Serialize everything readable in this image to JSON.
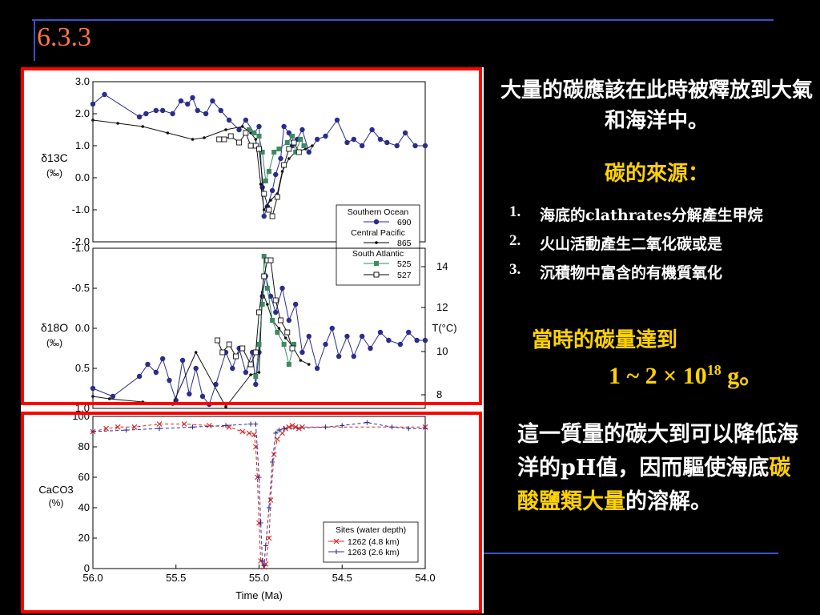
{
  "slide": {
    "title": "6.3.3",
    "intro": "大量的碳應該在此時被釋放到大氣和海洋中。",
    "sources_heading": "碳的來源：",
    "sources": [
      {
        "num": "1.",
        "text": "海底的clathrates分解產生甲烷"
      },
      {
        "num": "2.",
        "text": "火山活動產生二氧化碳或是"
      },
      {
        "num": "3.",
        "text": "沉積物中富含的有機質氧化"
      }
    ],
    "amount_line1": "當時的碳量達到",
    "amount_prefix": "1 ~ 2 × 10",
    "amount_exp": "18",
    "amount_suffix": " g。",
    "ph_white": "這一質量的碳大到可以降低海洋的pH值，因而驅使海底",
    "ph_yellow": "碳酸鹽類大量",
    "ph_end": "的溶解。",
    "colors": {
      "background": "#000000",
      "title": "#ff7744",
      "highlight": "#ffd200",
      "frame": "#ff0000",
      "rule": "#3355cc"
    }
  },
  "chart_data": [
    {
      "type": "line",
      "panel": "carbon isotopes",
      "ylabel": "δ13C (‰)",
      "ylim": [
        -2.0,
        3.0
      ],
      "yticks": [
        "3.0",
        "2.0",
        "1.0",
        "0.0",
        "-1.0",
        "-2.0"
      ],
      "xlim": [
        56.0,
        54.0
      ],
      "legend": {
        "placement": "bottom-right",
        "groups": [
          {
            "heading": "Southern Ocean",
            "site": "690",
            "color": "#2a2d8a",
            "marker": "circle"
          },
          {
            "heading": "Central Pacific",
            "site": "865",
            "color": "#000000",
            "marker": "dot"
          },
          {
            "heading": "South Atlantic",
            "site": "525",
            "color": "#3d8a62",
            "marker": "square"
          },
          {
            "heading": "",
            "site": "527",
            "color": "#000000",
            "marker": "open-square"
          }
        ]
      },
      "series": [
        {
          "name": "690",
          "points": [
            [
              56.0,
              2.3
            ],
            [
              55.93,
              2.6
            ],
            [
              55.72,
              1.9
            ],
            [
              55.68,
              2.0
            ],
            [
              55.62,
              2.1
            ],
            [
              55.58,
              2.1
            ],
            [
              55.52,
              2.0
            ],
            [
              55.47,
              2.4
            ],
            [
              55.43,
              2.3
            ],
            [
              55.4,
              2.5
            ],
            [
              55.37,
              2.1
            ],
            [
              55.32,
              2.0
            ],
            [
              55.28,
              2.4
            ],
            [
              55.23,
              2.1
            ],
            [
              55.18,
              1.8
            ],
            [
              55.12,
              1.5
            ],
            [
              55.08,
              1.8
            ],
            [
              55.03,
              1.4
            ],
            [
              55.0,
              1.6
            ],
            [
              54.98,
              -0.3
            ],
            [
              54.97,
              -1.2
            ],
            [
              54.95,
              -0.9
            ],
            [
              54.92,
              -0.4
            ],
            [
              54.9,
              0.1
            ],
            [
              54.87,
              0.6
            ],
            [
              54.85,
              1.6
            ],
            [
              54.82,
              1.4
            ],
            [
              54.8,
              1.0
            ],
            [
              54.77,
              1.2
            ],
            [
              54.74,
              1.5
            ],
            [
              54.7,
              0.8
            ],
            [
              54.65,
              1.2
            ],
            [
              54.6,
              1.3
            ],
            [
              54.53,
              1.8
            ],
            [
              54.47,
              1.1
            ],
            [
              54.43,
              1.2
            ],
            [
              54.38,
              1.0
            ],
            [
              54.32,
              1.5
            ],
            [
              54.27,
              1.2
            ],
            [
              54.23,
              1.1
            ],
            [
              54.17,
              1.0
            ],
            [
              54.12,
              1.4
            ],
            [
              54.06,
              1.0
            ],
            [
              54.0,
              1.0
            ]
          ]
        },
        {
          "name": "865",
          "points": [
            [
              56.0,
              1.8
            ],
            [
              55.85,
              1.7
            ],
            [
              55.7,
              1.6
            ],
            [
              55.55,
              1.4
            ],
            [
              55.4,
              1.2
            ],
            [
              55.33,
              1.25
            ],
            [
              55.2,
              1.5
            ],
            [
              55.1,
              1.6
            ],
            [
              55.05,
              1.4
            ],
            [
              55.02,
              1.2
            ],
            [
              54.99,
              -0.2
            ],
            [
              54.97,
              -1.0
            ],
            [
              54.93,
              -0.7
            ],
            [
              54.89,
              -0.5
            ],
            [
              54.86,
              0.2
            ],
            [
              54.82,
              0.6
            ],
            [
              54.78,
              0.8
            ],
            [
              54.72,
              0.9
            ],
            [
              54.68,
              1.0
            ]
          ]
        },
        {
          "name": "525",
          "points": [
            [
              55.06,
              1.5
            ],
            [
              55.03,
              1.4
            ],
            [
              55.0,
              1.3
            ],
            [
              54.98,
              0.8
            ],
            [
              54.96,
              -0.1
            ],
            [
              54.94,
              0.2
            ],
            [
              54.91,
              0.8
            ],
            [
              54.88,
              0.9
            ],
            [
              54.83,
              1.1
            ],
            [
              54.8,
              1.3
            ],
            [
              54.78,
              0.8
            ],
            [
              54.75,
              1.2
            ],
            [
              54.73,
              1.0
            ]
          ]
        },
        {
          "name": "527",
          "points": [
            [
              55.24,
              1.2
            ],
            [
              55.21,
              1.2
            ],
            [
              55.17,
              1.3
            ],
            [
              55.12,
              1.1
            ],
            [
              55.08,
              1.4
            ],
            [
              55.05,
              1.0
            ],
            [
              55.02,
              1.0
            ],
            [
              55.0,
              0.9
            ],
            [
              54.97,
              -0.5
            ],
            [
              54.94,
              -1.0
            ],
            [
              54.92,
              -1.2
            ],
            [
              54.89,
              -0.6
            ],
            [
              54.85,
              0.4
            ],
            [
              54.82,
              0.9
            ],
            [
              54.79,
              1.1
            ],
            [
              54.76,
              0.8
            ]
          ]
        }
      ]
    },
    {
      "type": "line",
      "panel": "oxygen isotopes",
      "ylabel": "δ18O (‰)",
      "ylim": [
        1.0,
        -1.0
      ],
      "yticks": [
        "-1.0",
        "-0.5",
        "0.0",
        "0.5",
        "1.0"
      ],
      "right_axis": {
        "label": "T(°C)",
        "ticks": [
          {
            "label": "14",
            "d18O": -0.77
          },
          {
            "label": "12",
            "d18O": -0.26
          },
          {
            "label": "10",
            "d18O": 0.29
          },
          {
            "label": "8",
            "d18O": 0.83
          }
        ]
      },
      "xlim": [
        56.0,
        54.0
      ],
      "series": [
        {
          "name": "690",
          "points": [
            [
              56.0,
              0.75
            ],
            [
              55.88,
              0.85
            ],
            [
              55.72,
              0.6
            ],
            [
              55.67,
              0.45
            ],
            [
              55.62,
              0.55
            ],
            [
              55.58,
              0.38
            ],
            [
              55.54,
              0.65
            ],
            [
              55.5,
              0.9
            ],
            [
              55.46,
              0.4
            ],
            [
              55.42,
              0.82
            ],
            [
              55.38,
              0.5
            ],
            [
              55.34,
              0.85
            ],
            [
              55.3,
              0.95
            ],
            [
              55.26,
              0.7
            ],
            [
              55.2,
              0.3
            ],
            [
              55.16,
              0.5
            ],
            [
              55.12,
              0.25
            ],
            [
              55.08,
              0.55
            ],
            [
              55.04,
              0.3
            ],
            [
              55.02,
              0.7
            ],
            [
              55.0,
              0.3
            ],
            [
              54.98,
              -0.4
            ],
            [
              54.96,
              -0.65
            ],
            [
              54.93,
              -0.4
            ],
            [
              54.9,
              -0.2
            ],
            [
              54.86,
              -0.5
            ],
            [
              54.82,
              -0.1
            ],
            [
              54.78,
              -0.3
            ],
            [
              54.74,
              0.3
            ],
            [
              54.7,
              0.1
            ],
            [
              54.65,
              0.5
            ],
            [
              54.6,
              0.2
            ],
            [
              54.56,
              0.0
            ],
            [
              54.52,
              0.35
            ],
            [
              54.47,
              0.1
            ],
            [
              54.43,
              0.35
            ],
            [
              54.38,
              0.1
            ],
            [
              54.33,
              0.25
            ],
            [
              54.27,
              0.05
            ],
            [
              54.22,
              0.15
            ],
            [
              54.15,
              0.2
            ],
            [
              54.1,
              0.05
            ],
            [
              54.05,
              0.15
            ],
            [
              54.0,
              0.15
            ]
          ]
        },
        {
          "name": "865",
          "points": [
            [
              56.0,
              0.85
            ],
            [
              55.9,
              0.88
            ],
            [
              55.7,
              0.92
            ],
            [
              55.52,
              0.95
            ],
            [
              55.38,
              0.3
            ],
            [
              55.2,
              0.98
            ],
            [
              55.05,
              0.58
            ],
            [
              55.0,
              0.55
            ],
            [
              54.98,
              -0.45
            ],
            [
              54.95,
              -0.3
            ],
            [
              54.92,
              -0.1
            ],
            [
              54.88,
              0.0
            ],
            [
              54.84,
              0.12
            ],
            [
              54.8,
              0.22
            ],
            [
              54.75,
              0.4
            ],
            [
              54.7,
              0.45
            ]
          ]
        },
        {
          "name": "525",
          "points": [
            [
              55.02,
              0.6
            ],
            [
              55.0,
              0.2
            ],
            [
              54.98,
              -0.3
            ],
            [
              54.97,
              -0.9
            ],
            [
              54.95,
              -0.5
            ],
            [
              54.92,
              -0.1
            ],
            [
              54.89,
              0.05
            ],
            [
              54.85,
              0.2
            ],
            [
              54.82,
              0.45
            ],
            [
              54.79,
              0.2
            ]
          ]
        },
        {
          "name": "527",
          "points": [
            [
              55.25,
              0.15
            ],
            [
              55.22,
              0.3
            ],
            [
              55.18,
              0.2
            ],
            [
              55.14,
              0.35
            ],
            [
              55.1,
              0.25
            ],
            [
              55.05,
              0.45
            ],
            [
              55.02,
              0.3
            ],
            [
              55.0,
              -0.2
            ],
            [
              54.97,
              -0.65
            ],
            [
              54.95,
              -0.85
            ],
            [
              54.93,
              -0.85
            ],
            [
              54.9,
              -0.35
            ],
            [
              54.87,
              -0.1
            ],
            [
              54.83,
              0.05
            ],
            [
              54.8,
              0.25
            ]
          ]
        }
      ]
    },
    {
      "type": "line",
      "panel": "carbonate content",
      "ylabel": "CaCO3 (%)",
      "ylim": [
        0,
        100
      ],
      "yticks": [
        "0",
        "20",
        "40",
        "60",
        "80",
        "100"
      ],
      "xlim": [
        56.0,
        54.0
      ],
      "xticks": [
        "56.0",
        "55.5",
        "55.0",
        "54.5",
        "54.0"
      ],
      "xlabel": "Time (Ma)",
      "legend": {
        "placement": "bottom-right",
        "heading": "Sites (water depth)",
        "entries": [
          "1262 (4.8 km)",
          "1263 (2.6 km)"
        ]
      },
      "series": [
        {
          "name": "1262 (4.8 km)",
          "color": "#dd2222",
          "marker": "x",
          "points": [
            [
              56.0,
              90
            ],
            [
              55.92,
              92
            ],
            [
              55.85,
              93
            ],
            [
              55.75,
              93
            ],
            [
              55.6,
              95
            ],
            [
              55.45,
              95
            ],
            [
              55.3,
              94
            ],
            [
              55.18,
              93
            ],
            [
              55.1,
              90
            ],
            [
              55.06,
              89
            ],
            [
              55.03,
              88
            ],
            [
              55.02,
              80
            ],
            [
              55.01,
              60
            ],
            [
              55.0,
              30
            ],
            [
              54.99,
              5
            ],
            [
              54.97,
              1
            ],
            [
              54.96,
              3
            ],
            [
              54.94,
              20
            ],
            [
              54.93,
              45
            ],
            [
              54.91,
              75
            ],
            [
              54.89,
              85
            ],
            [
              54.86,
              89
            ],
            [
              54.84,
              92
            ],
            [
              54.82,
              93
            ],
            [
              54.8,
              94
            ],
            [
              54.78,
              93
            ],
            [
              54.76,
              92
            ],
            [
              54.74,
              93
            ],
            [
              54.0,
              93
            ]
          ]
        },
        {
          "name": "1263 (2.6 km)",
          "color": "#2d2d99",
          "marker": "plus",
          "points": [
            [
              56.0,
              90
            ],
            [
              55.8,
              91
            ],
            [
              55.6,
              92
            ],
            [
              55.4,
              93
            ],
            [
              55.2,
              94
            ],
            [
              55.05,
              95
            ],
            [
              55.02,
              95
            ],
            [
              55.0,
              60
            ],
            [
              54.99,
              30
            ],
            [
              54.98,
              5
            ],
            [
              54.97,
              2
            ],
            [
              54.96,
              15
            ],
            [
              54.94,
              40
            ],
            [
              54.92,
              70
            ],
            [
              54.9,
              89
            ],
            [
              54.88,
              91
            ],
            [
              54.85,
              92
            ],
            [
              54.6,
              93
            ],
            [
              54.5,
              94
            ],
            [
              54.35,
              96
            ],
            [
              54.2,
              93
            ],
            [
              54.1,
              92
            ],
            [
              54.0,
              92
            ]
          ]
        }
      ]
    }
  ]
}
